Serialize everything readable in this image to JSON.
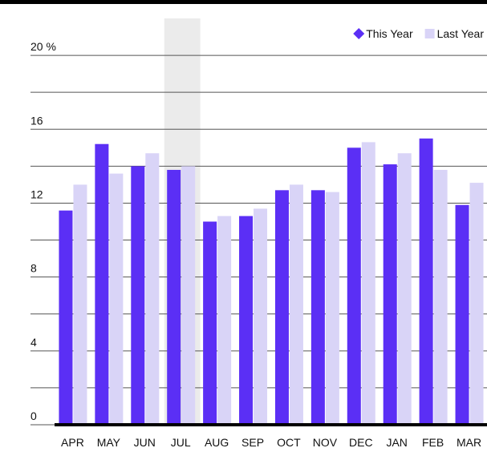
{
  "chart_data": {
    "type": "bar",
    "categories": [
      "APR",
      "MAY",
      "JUN",
      "JUL",
      "AUG",
      "SEP",
      "OCT",
      "NOV",
      "DEC",
      "JAN",
      "FEB",
      "MAR"
    ],
    "series": [
      {
        "name": "This Year",
        "color": "#5b2ff5",
        "values": [
          11.6,
          15.2,
          14.0,
          13.8,
          11.0,
          11.3,
          12.7,
          12.7,
          15.0,
          14.1,
          15.5,
          11.9
        ]
      },
      {
        "name": "Last Year",
        "color": "#d9d4f7",
        "values": [
          13.0,
          13.6,
          14.7,
          14.0,
          11.3,
          11.7,
          13.0,
          12.6,
          15.3,
          14.7,
          13.8,
          13.1
        ]
      }
    ],
    "ylim": [
      0,
      22
    ],
    "yticks": [
      0,
      4,
      8,
      12,
      16,
      {
        "value": 20,
        "label": "20 %"
      }
    ],
    "minor_yticks": [
      2,
      6,
      10,
      14,
      18
    ],
    "grid": true,
    "legend": "top-right",
    "highlight_category": "JUL"
  }
}
